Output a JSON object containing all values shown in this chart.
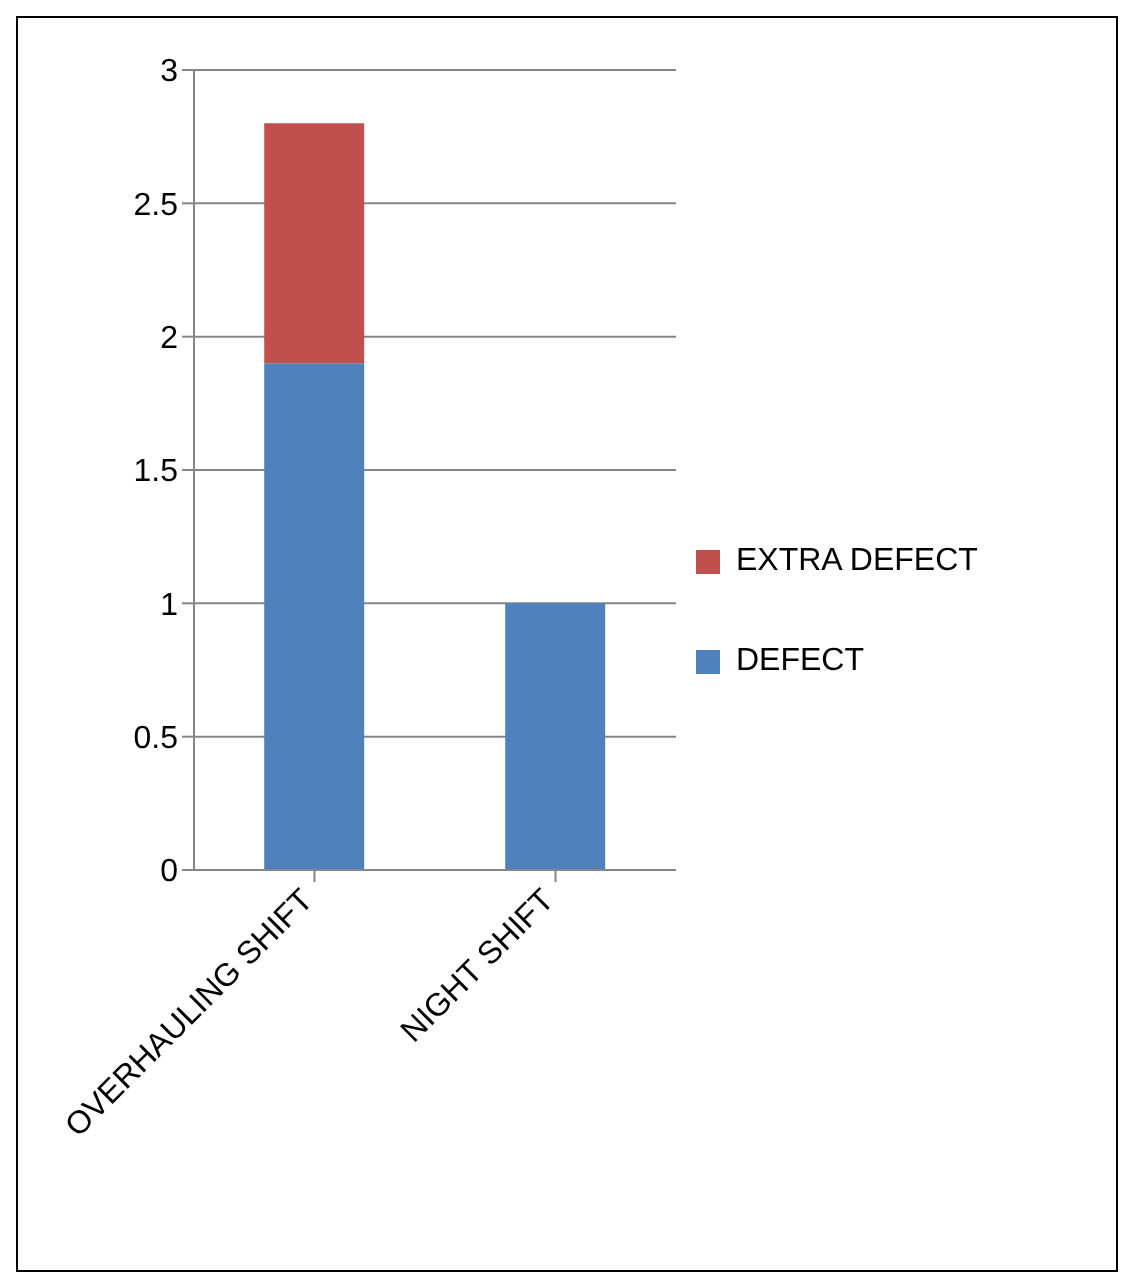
{
  "chart_data": {
    "type": "bar",
    "stacked": true,
    "categories": [
      "OVERHAULING SHIFT",
      "NIGHT SHIFT"
    ],
    "series": [
      {
        "name": "DEFECT",
        "color": "#4f81bd",
        "values": [
          1.9,
          1
        ]
      },
      {
        "name": "EXTRA DEFECT",
        "color": "#c0504d",
        "values": [
          0.9,
          0
        ]
      }
    ],
    "ylim": [
      0,
      3
    ],
    "yticks": [
      0,
      0.5,
      1,
      1.5,
      2,
      2.5,
      3
    ],
    "grid": "y",
    "legend": "right"
  }
}
